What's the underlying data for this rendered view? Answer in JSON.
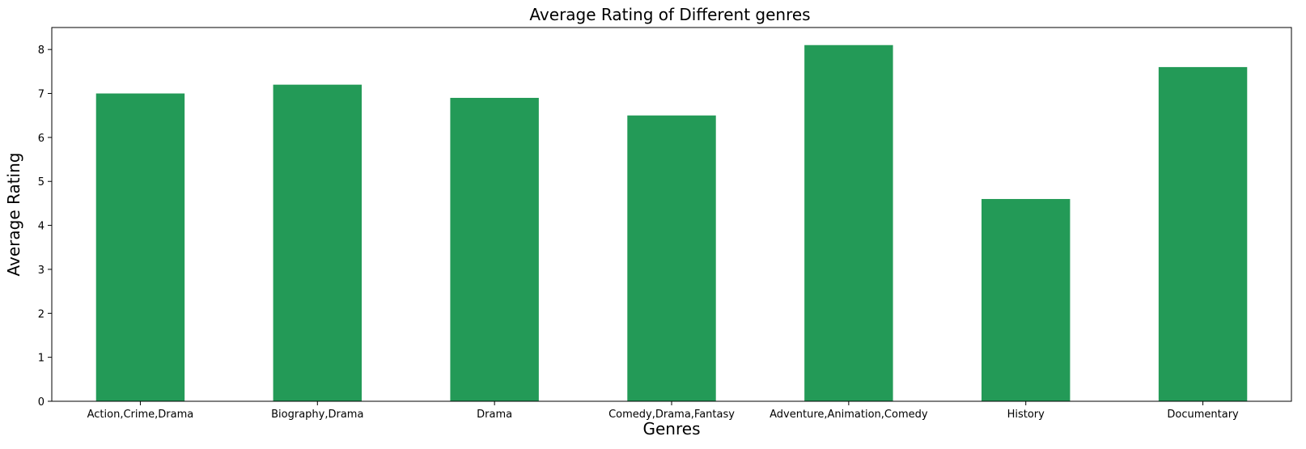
{
  "chart_data": {
    "type": "bar",
    "title": "Average Rating of Different genres",
    "xlabel": "Genres",
    "ylabel": "Average Rating",
    "categories": [
      "Action,Crime,Drama",
      "Biography,Drama",
      "Drama",
      "Comedy,Drama,Fantasy",
      "Adventure,Animation,Comedy",
      "History",
      "Documentary"
    ],
    "values": [
      7.0,
      7.2,
      6.9,
      6.5,
      8.1,
      4.6,
      7.6
    ],
    "ylim": [
      0,
      8.5
    ],
    "yticks": [
      "0",
      "1",
      "2",
      "3",
      "4",
      "5",
      "6",
      "7",
      "8"
    ],
    "bar_color": "#239a57",
    "grid": false,
    "legend": "none"
  }
}
